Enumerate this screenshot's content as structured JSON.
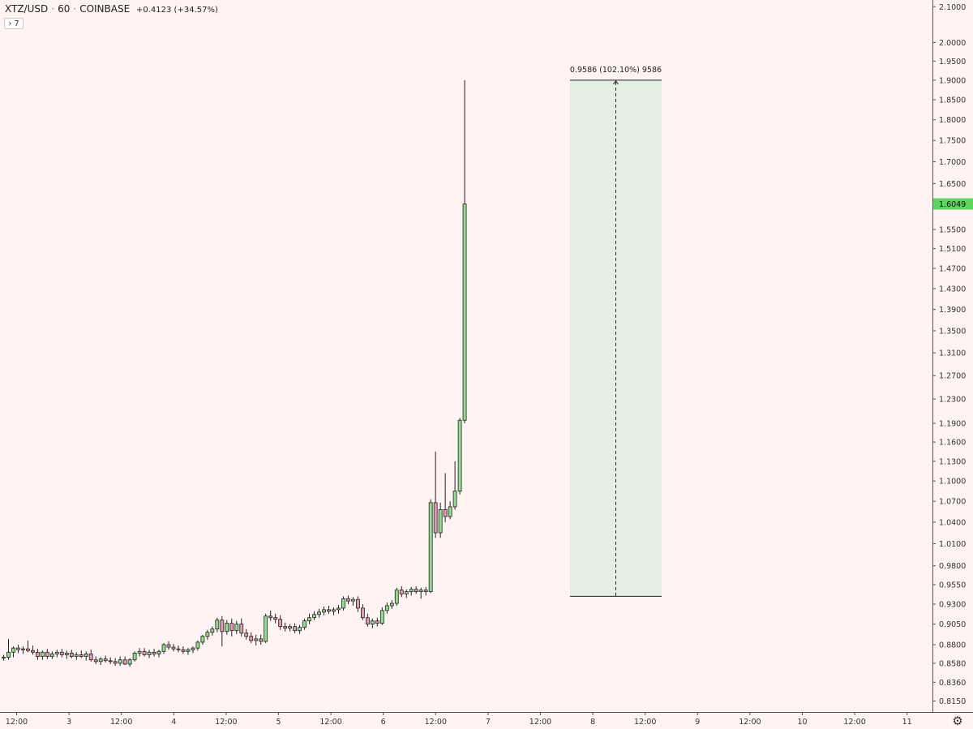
{
  "header": {
    "symbol": "XTZ/USD",
    "interval": "60",
    "exchange": "COINBASE",
    "change": "+0.4123 (+34.57%)",
    "indicator_count": "7",
    "indicator_icon": "chevron-right-icon",
    "settings_icon": "gear-icon"
  },
  "colors": {
    "background": "#fff3f3",
    "up": "#8fe08f",
    "down": "#e59ab3",
    "wick": "#222222",
    "last_price_label": "#5cd65c",
    "measure_fill": "#e3efe3",
    "axis_text": "#333333"
  },
  "measure": {
    "label": "0.9586 (102.10%) 9586",
    "from": 0.94,
    "to": 1.9
  },
  "last_price": {
    "value": 1.6049,
    "label": "1.6049"
  },
  "chart_data": {
    "type": "candlestick",
    "title": "",
    "grid": false,
    "y_scale": "log",
    "ylim": [
      0.81,
      2.11
    ],
    "y_ticks": [
      {
        "v": 2.1,
        "label": "2.1000"
      },
      {
        "v": 2.0,
        "label": "2.0000"
      },
      {
        "v": 1.95,
        "label": "1.9500"
      },
      {
        "v": 1.9,
        "label": "1.9000"
      },
      {
        "v": 1.85,
        "label": "1.8500"
      },
      {
        "v": 1.8,
        "label": "1.8000"
      },
      {
        "v": 1.75,
        "label": "1.7500"
      },
      {
        "v": 1.7,
        "label": "1.7000"
      },
      {
        "v": 1.65,
        "label": "1.6500"
      },
      {
        "v": 1.55,
        "label": "1.5500"
      },
      {
        "v": 1.51,
        "label": "1.5100"
      },
      {
        "v": 1.47,
        "label": "1.4700"
      },
      {
        "v": 1.43,
        "label": "1.4300"
      },
      {
        "v": 1.39,
        "label": "1.3900"
      },
      {
        "v": 1.35,
        "label": "1.3500"
      },
      {
        "v": 1.31,
        "label": "1.3100"
      },
      {
        "v": 1.27,
        "label": "1.2700"
      },
      {
        "v": 1.23,
        "label": "1.2300"
      },
      {
        "v": 1.19,
        "label": "1.1900"
      },
      {
        "v": 1.16,
        "label": "1.1600"
      },
      {
        "v": 1.13,
        "label": "1.1300"
      },
      {
        "v": 1.1,
        "label": "1.1000"
      },
      {
        "v": 1.07,
        "label": "1.0700"
      },
      {
        "v": 1.04,
        "label": "1.0400"
      },
      {
        "v": 1.01,
        "label": "1.0100"
      },
      {
        "v": 0.98,
        "label": "0.9800"
      },
      {
        "v": 0.955,
        "label": "0.9550"
      },
      {
        "v": 0.93,
        "label": "0.9300"
      },
      {
        "v": 0.905,
        "label": "0.9050"
      },
      {
        "v": 0.88,
        "label": "0.8800"
      },
      {
        "v": 0.858,
        "label": "0.8580"
      },
      {
        "v": 0.836,
        "label": "0.8360"
      },
      {
        "v": 0.815,
        "label": "0.8150"
      }
    ],
    "x_ticks": [
      "12:00",
      "3",
      "12:00",
      "4",
      "12:00",
      "5",
      "12:00",
      "6",
      "12:00",
      "7",
      "12:00",
      "8",
      "12:00",
      "9",
      "12:00",
      "10",
      "12:00",
      "11"
    ],
    "candles": [
      {
        "o": 0.864,
        "h": 0.868,
        "l": 0.861,
        "c": 0.865
      },
      {
        "o": 0.865,
        "h": 0.887,
        "l": 0.862,
        "c": 0.871
      },
      {
        "o": 0.871,
        "h": 0.878,
        "l": 0.865,
        "c": 0.876
      },
      {
        "o": 0.876,
        "h": 0.88,
        "l": 0.87,
        "c": 0.874
      },
      {
        "o": 0.874,
        "h": 0.878,
        "l": 0.869,
        "c": 0.875
      },
      {
        "o": 0.875,
        "h": 0.885,
        "l": 0.871,
        "c": 0.873
      },
      {
        "o": 0.873,
        "h": 0.879,
        "l": 0.868,
        "c": 0.871
      },
      {
        "o": 0.871,
        "h": 0.875,
        "l": 0.862,
        "c": 0.866
      },
      {
        "o": 0.866,
        "h": 0.873,
        "l": 0.862,
        "c": 0.871
      },
      {
        "o": 0.871,
        "h": 0.875,
        "l": 0.863,
        "c": 0.866
      },
      {
        "o": 0.866,
        "h": 0.872,
        "l": 0.863,
        "c": 0.869
      },
      {
        "o": 0.869,
        "h": 0.874,
        "l": 0.865,
        "c": 0.871
      },
      {
        "o": 0.871,
        "h": 0.875,
        "l": 0.865,
        "c": 0.868
      },
      {
        "o": 0.868,
        "h": 0.873,
        "l": 0.863,
        "c": 0.87
      },
      {
        "o": 0.87,
        "h": 0.874,
        "l": 0.864,
        "c": 0.866
      },
      {
        "o": 0.866,
        "h": 0.871,
        "l": 0.862,
        "c": 0.868
      },
      {
        "o": 0.868,
        "h": 0.873,
        "l": 0.864,
        "c": 0.866
      },
      {
        "o": 0.866,
        "h": 0.872,
        "l": 0.861,
        "c": 0.869
      },
      {
        "o": 0.869,
        "h": 0.874,
        "l": 0.86,
        "c": 0.862
      },
      {
        "o": 0.862,
        "h": 0.866,
        "l": 0.857,
        "c": 0.86
      },
      {
        "o": 0.86,
        "h": 0.865,
        "l": 0.856,
        "c": 0.863
      },
      {
        "o": 0.863,
        "h": 0.867,
        "l": 0.859,
        "c": 0.861
      },
      {
        "o": 0.861,
        "h": 0.865,
        "l": 0.857,
        "c": 0.86
      },
      {
        "o": 0.86,
        "h": 0.864,
        "l": 0.855,
        "c": 0.858
      },
      {
        "o": 0.858,
        "h": 0.866,
        "l": 0.855,
        "c": 0.862
      },
      {
        "o": 0.862,
        "h": 0.866,
        "l": 0.856,
        "c": 0.857
      },
      {
        "o": 0.857,
        "h": 0.864,
        "l": 0.854,
        "c": 0.862
      },
      {
        "o": 0.862,
        "h": 0.872,
        "l": 0.86,
        "c": 0.87
      },
      {
        "o": 0.87,
        "h": 0.876,
        "l": 0.866,
        "c": 0.872
      },
      {
        "o": 0.872,
        "h": 0.876,
        "l": 0.866,
        "c": 0.868
      },
      {
        "o": 0.868,
        "h": 0.874,
        "l": 0.864,
        "c": 0.871
      },
      {
        "o": 0.871,
        "h": 0.875,
        "l": 0.866,
        "c": 0.869
      },
      {
        "o": 0.869,
        "h": 0.874,
        "l": 0.865,
        "c": 0.872
      },
      {
        "o": 0.872,
        "h": 0.882,
        "l": 0.869,
        "c": 0.88
      },
      {
        "o": 0.88,
        "h": 0.884,
        "l": 0.874,
        "c": 0.877
      },
      {
        "o": 0.877,
        "h": 0.881,
        "l": 0.872,
        "c": 0.875
      },
      {
        "o": 0.875,
        "h": 0.879,
        "l": 0.871,
        "c": 0.874
      },
      {
        "o": 0.874,
        "h": 0.878,
        "l": 0.869,
        "c": 0.872
      },
      {
        "o": 0.872,
        "h": 0.876,
        "l": 0.868,
        "c": 0.874
      },
      {
        "o": 0.874,
        "h": 0.878,
        "l": 0.87,
        "c": 0.876
      },
      {
        "o": 0.876,
        "h": 0.885,
        "l": 0.873,
        "c": 0.883
      },
      {
        "o": 0.883,
        "h": 0.892,
        "l": 0.88,
        "c": 0.89
      },
      {
        "o": 0.89,
        "h": 0.898,
        "l": 0.886,
        "c": 0.895
      },
      {
        "o": 0.895,
        "h": 0.902,
        "l": 0.891,
        "c": 0.899
      },
      {
        "o": 0.899,
        "h": 0.913,
        "l": 0.895,
        "c": 0.91
      },
      {
        "o": 0.91,
        "h": 0.915,
        "l": 0.878,
        "c": 0.896
      },
      {
        "o": 0.896,
        "h": 0.91,
        "l": 0.892,
        "c": 0.906
      },
      {
        "o": 0.906,
        "h": 0.912,
        "l": 0.89,
        "c": 0.897
      },
      {
        "o": 0.897,
        "h": 0.909,
        "l": 0.893,
        "c": 0.905
      },
      {
        "o": 0.905,
        "h": 0.912,
        "l": 0.89,
        "c": 0.894
      },
      {
        "o": 0.894,
        "h": 0.899,
        "l": 0.886,
        "c": 0.89
      },
      {
        "o": 0.89,
        "h": 0.895,
        "l": 0.882,
        "c": 0.885
      },
      {
        "o": 0.885,
        "h": 0.892,
        "l": 0.879,
        "c": 0.887
      },
      {
        "o": 0.887,
        "h": 0.892,
        "l": 0.88,
        "c": 0.884
      },
      {
        "o": 0.884,
        "h": 0.918,
        "l": 0.882,
        "c": 0.915
      },
      {
        "o": 0.915,
        "h": 0.922,
        "l": 0.909,
        "c": 0.913
      },
      {
        "o": 0.913,
        "h": 0.918,
        "l": 0.906,
        "c": 0.911
      },
      {
        "o": 0.911,
        "h": 0.916,
        "l": 0.898,
        "c": 0.902
      },
      {
        "o": 0.902,
        "h": 0.907,
        "l": 0.896,
        "c": 0.9
      },
      {
        "o": 0.9,
        "h": 0.905,
        "l": 0.896,
        "c": 0.902
      },
      {
        "o": 0.902,
        "h": 0.906,
        "l": 0.894,
        "c": 0.897
      },
      {
        "o": 0.897,
        "h": 0.904,
        "l": 0.893,
        "c": 0.901
      },
      {
        "o": 0.901,
        "h": 0.912,
        "l": 0.898,
        "c": 0.909
      },
      {
        "o": 0.909,
        "h": 0.918,
        "l": 0.905,
        "c": 0.913
      },
      {
        "o": 0.913,
        "h": 0.921,
        "l": 0.91,
        "c": 0.917
      },
      {
        "o": 0.917,
        "h": 0.924,
        "l": 0.913,
        "c": 0.92
      },
      {
        "o": 0.92,
        "h": 0.927,
        "l": 0.916,
        "c": 0.923
      },
      {
        "o": 0.923,
        "h": 0.928,
        "l": 0.918,
        "c": 0.921
      },
      {
        "o": 0.921,
        "h": 0.926,
        "l": 0.916,
        "c": 0.923
      },
      {
        "o": 0.923,
        "h": 0.929,
        "l": 0.918,
        "c": 0.925
      },
      {
        "o": 0.925,
        "h": 0.94,
        "l": 0.922,
        "c": 0.937
      },
      {
        "o": 0.937,
        "h": 0.941,
        "l": 0.93,
        "c": 0.934
      },
      {
        "o": 0.934,
        "h": 0.939,
        "l": 0.928,
        "c": 0.936
      },
      {
        "o": 0.936,
        "h": 0.94,
        "l": 0.92,
        "c": 0.925
      },
      {
        "o": 0.925,
        "h": 0.93,
        "l": 0.91,
        "c": 0.913
      },
      {
        "o": 0.913,
        "h": 0.918,
        "l": 0.902,
        "c": 0.905
      },
      {
        "o": 0.905,
        "h": 0.912,
        "l": 0.9,
        "c": 0.909
      },
      {
        "o": 0.909,
        "h": 0.913,
        "l": 0.902,
        "c": 0.906
      },
      {
        "o": 0.906,
        "h": 0.926,
        "l": 0.904,
        "c": 0.922
      },
      {
        "o": 0.922,
        "h": 0.932,
        "l": 0.918,
        "c": 0.928
      },
      {
        "o": 0.928,
        "h": 0.935,
        "l": 0.924,
        "c": 0.931
      },
      {
        "o": 0.931,
        "h": 0.951,
        "l": 0.928,
        "c": 0.948
      },
      {
        "o": 0.948,
        "h": 0.953,
        "l": 0.939,
        "c": 0.943
      },
      {
        "o": 0.943,
        "h": 0.949,
        "l": 0.938,
        "c": 0.946
      },
      {
        "o": 0.946,
        "h": 0.952,
        "l": 0.941,
        "c": 0.949
      },
      {
        "o": 0.949,
        "h": 0.953,
        "l": 0.943,
        "c": 0.946
      },
      {
        "o": 0.946,
        "h": 0.951,
        "l": 0.937,
        "c": 0.948
      },
      {
        "o": 0.948,
        "h": 0.952,
        "l": 0.941,
        "c": 0.946
      },
      {
        "o": 0.946,
        "h": 1.073,
        "l": 0.944,
        "c": 1.068
      },
      {
        "o": 1.068,
        "h": 1.145,
        "l": 1.018,
        "c": 1.025
      },
      {
        "o": 1.025,
        "h": 1.068,
        "l": 1.018,
        "c": 1.058
      },
      {
        "o": 1.058,
        "h": 1.112,
        "l": 1.04,
        "c": 1.048
      },
      {
        "o": 1.048,
        "h": 1.07,
        "l": 1.044,
        "c": 1.062
      },
      {
        "o": 1.062,
        "h": 1.13,
        "l": 1.058,
        "c": 1.085
      },
      {
        "o": 1.085,
        "h": 1.199,
        "l": 1.08,
        "c": 1.195
      },
      {
        "o": 1.195,
        "h": 1.9,
        "l": 1.19,
        "c": 1.6049
      }
    ]
  }
}
